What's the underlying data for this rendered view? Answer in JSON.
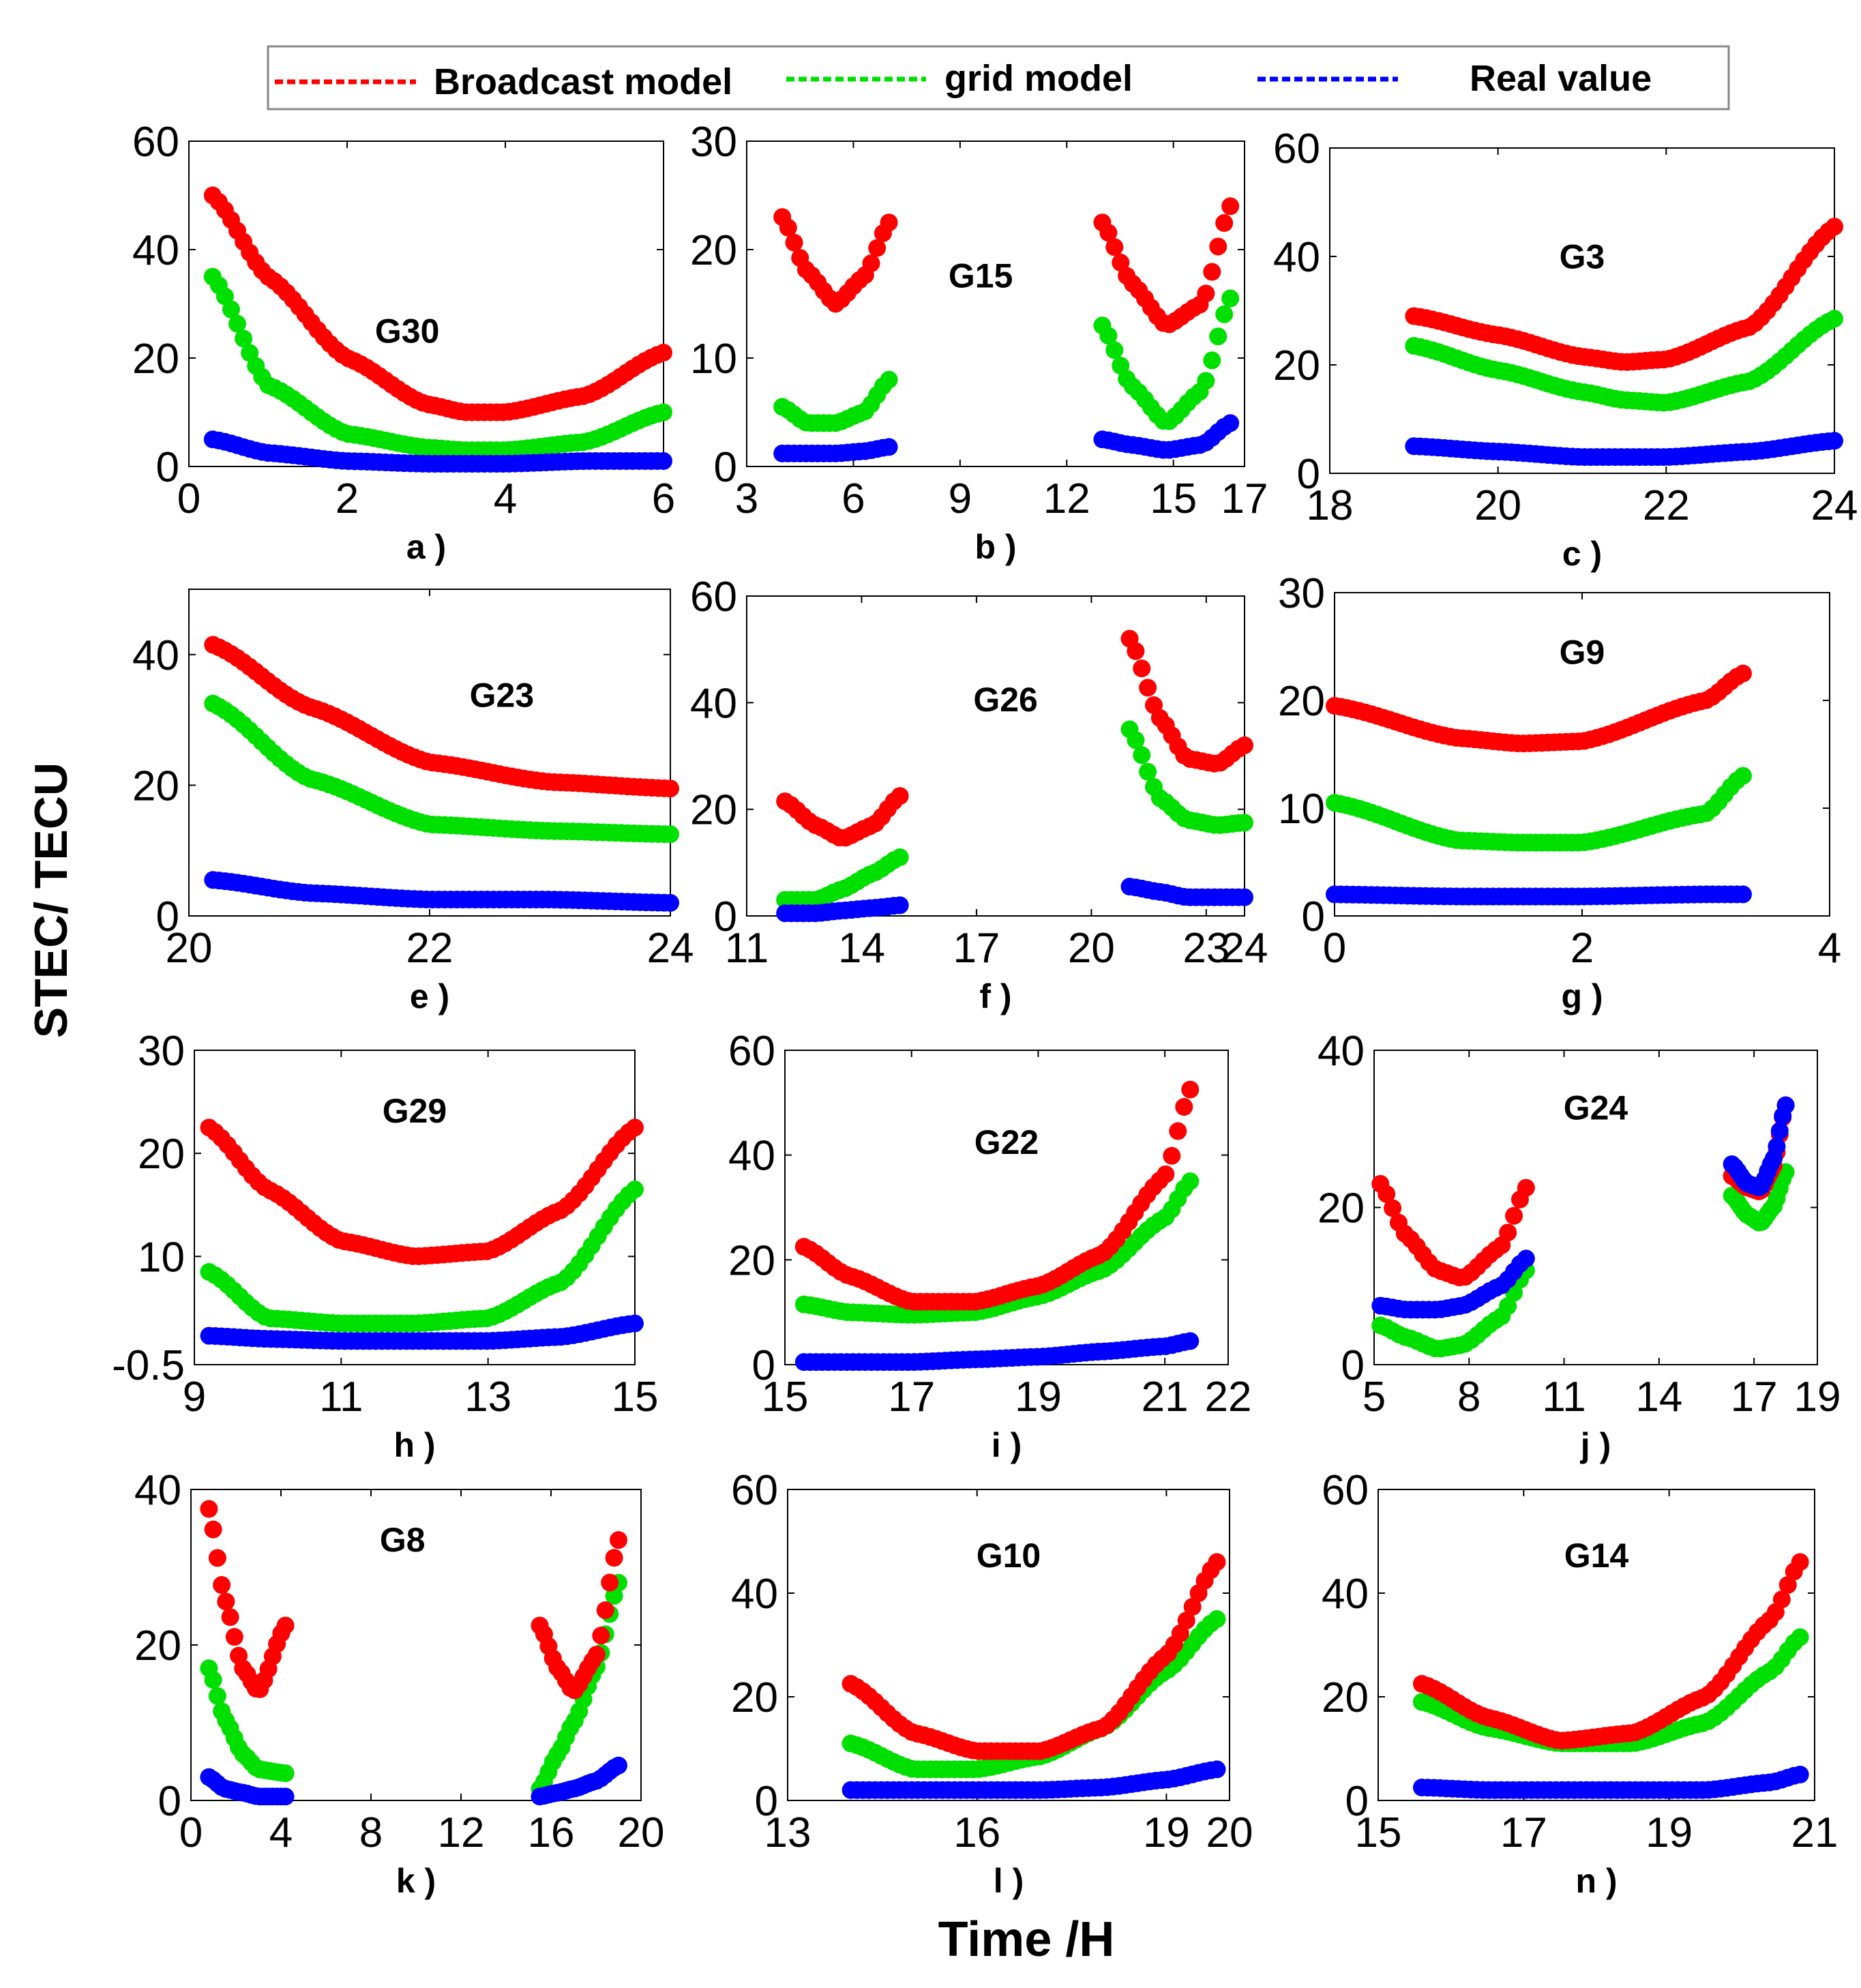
{
  "legend": {
    "broadcast": {
      "label": "Broadcast model",
      "color": "#ff0000"
    },
    "grid": {
      "label": "grid model",
      "color": "#00e000"
    },
    "real": {
      "label": "Real value",
      "color": "#0000ff"
    }
  },
  "ylabel": "STEC/ TECU",
  "xlabel": "Time /H",
  "chart_data": [
    {
      "id": "a",
      "type": "scatter",
      "title": "G30",
      "panel_label": "a )",
      "xlim": [
        0,
        6
      ],
      "ylim": [
        0,
        60
      ],
      "xticks": [
        0,
        2,
        4,
        6
      ],
      "yticks": [
        0,
        20,
        40,
        60
      ],
      "segments": [
        {
          "x": [
            0.3,
            1,
            2,
            3,
            3.5,
            4,
            5,
            6
          ],
          "broadcast": [
            50,
            35,
            20,
            11.5,
            10,
            10,
            13,
            21
          ],
          "grid": [
            35,
            15,
            6,
            3.5,
            3,
            3,
            4.5,
            10
          ],
          "real": [
            5,
            2.5,
            1,
            0.5,
            0.5,
            0.5,
            1,
            1
          ]
        }
      ]
    },
    {
      "id": "b",
      "type": "scatter",
      "title": "G15",
      "panel_label": "b )",
      "xlim": [
        3,
        17
      ],
      "ylim": [
        0,
        30
      ],
      "xticks": [
        3,
        6,
        9,
        12,
        15,
        17
      ],
      "yticks": [
        0,
        10,
        20,
        30
      ],
      "segments": [
        {
          "x": [
            4,
            4.7,
            5.5,
            6.3,
            7
          ],
          "broadcast": [
            23,
            18,
            15,
            17.5,
            22.5
          ],
          "grid": [
            5.5,
            4,
            4,
            5,
            8
          ],
          "real": [
            1.2,
            1.2,
            1.2,
            1.4,
            1.8
          ]
        },
        {
          "x": [
            13,
            13.8,
            14.8,
            15.8,
            16.6
          ],
          "broadcast": [
            22.5,
            17,
            13,
            15,
            24
          ],
          "grid": [
            13,
            7.5,
            4,
            7,
            15.5
          ],
          "real": [
            2.5,
            2,
            1.5,
            2,
            4
          ]
        }
      ]
    },
    {
      "id": "c",
      "type": "scatter",
      "title": "G3",
      "panel_label": "c )",
      "xlim": [
        18,
        24
      ],
      "ylim": [
        0,
        60
      ],
      "xticks": [
        18,
        20,
        22,
        24
      ],
      "yticks": [
        0,
        20,
        40,
        60
      ],
      "segments": [
        {
          "x": [
            19,
            20,
            21,
            21.5,
            22,
            23,
            24
          ],
          "broadcast": [
            29,
            25.5,
            21.5,
            20.5,
            21,
            27,
            45.5
          ],
          "grid": [
            23.5,
            19,
            15,
            13.5,
            13,
            17,
            28.5
          ],
          "real": [
            5,
            4,
            3,
            3,
            3,
            4,
            6
          ]
        }
      ]
    },
    {
      "id": "e",
      "type": "scatter",
      "title": "G23",
      "panel_label": "e )",
      "xlim": [
        20,
        24
      ],
      "ylim": [
        0,
        50
      ],
      "xticks": [
        20,
        22,
        24
      ],
      "yticks": [
        0,
        20,
        40
      ],
      "segments": [
        {
          "x": [
            20.2,
            21,
            22,
            23,
            24
          ],
          "broadcast": [
            41.5,
            32,
            23.5,
            20.5,
            19.5
          ],
          "grid": [
            32.5,
            21,
            14,
            13,
            12.5
          ],
          "real": [
            5.5,
            3.5,
            2.5,
            2.5,
            2
          ]
        }
      ]
    },
    {
      "id": "f",
      "type": "scatter",
      "title": "G26",
      "panel_label": "f )",
      "xlim": [
        11,
        24
      ],
      "ylim": [
        0,
        60
      ],
      "xticks": [
        11,
        14,
        17,
        20,
        23,
        24
      ],
      "yticks": [
        0,
        20,
        40,
        60
      ],
      "segments": [
        {
          "x": [
            12,
            12.8,
            13.5,
            14.3,
            15
          ],
          "broadcast": [
            21.5,
            17,
            14.5,
            17,
            22.5
          ],
          "grid": [
            3,
            3,
            5,
            8,
            11
          ],
          "real": [
            0.5,
            0.5,
            1,
            1.5,
            2
          ]
        },
        {
          "x": [
            21,
            21.8,
            22.5,
            23.3,
            24
          ],
          "broadcast": [
            52,
            37,
            29.5,
            28.5,
            32
          ],
          "grid": [
            35,
            22,
            18,
            17,
            17.5
          ],
          "real": [
            5.5,
            4.5,
            3.5,
            3.5,
            3.5
          ]
        }
      ]
    },
    {
      "id": "g",
      "type": "scatter",
      "title": "G9",
      "panel_label": "g )",
      "xlim": [
        0,
        4
      ],
      "ylim": [
        0,
        30
      ],
      "xticks": [
        0,
        2,
        4
      ],
      "yticks": [
        0,
        10,
        20,
        30
      ],
      "segments": [
        {
          "x": [
            0,
            1,
            1.5,
            2,
            3,
            3.3
          ],
          "broadcast": [
            19.5,
            16.5,
            16,
            16.2,
            20,
            22.5
          ],
          "grid": [
            10.5,
            7,
            6.8,
            6.8,
            9.5,
            13
          ],
          "real": [
            2,
            1.8,
            1.8,
            1.8,
            2,
            2
          ]
        }
      ]
    },
    {
      "id": "h",
      "type": "scatter",
      "title": "G29",
      "panel_label": "h )",
      "xlim": [
        9,
        15
      ],
      "ylim": [
        -0.5,
        30
      ],
      "xticks": [
        9,
        11,
        13,
        15
      ],
      "yticks": [
        -0.5,
        10,
        20,
        30
      ],
      "segments": [
        {
          "x": [
            9.2,
            10,
            11,
            12,
            13,
            14,
            15
          ],
          "broadcast": [
            22.5,
            16.5,
            11.5,
            10,
            10.5,
            14.5,
            22.5
          ],
          "grid": [
            8.5,
            4,
            3.5,
            3.5,
            4,
            7.5,
            16.5
          ],
          "real": [
            2.3,
            2,
            1.8,
            1.8,
            1.8,
            2.2,
            3.5
          ]
        }
      ]
    },
    {
      "id": "i",
      "type": "scatter",
      "title": "G22",
      "panel_label": "i )",
      "xlim": [
        15,
        22
      ],
      "ylim": [
        0,
        60
      ],
      "xticks": [
        15,
        17,
        19,
        21,
        22
      ],
      "yticks": [
        0,
        20,
        40,
        60
      ],
      "segments": [
        {
          "x": [
            15.3,
            16,
            17,
            18,
            19,
            20,
            21,
            21.4
          ],
          "broadcast": [
            22.5,
            17,
            12,
            12,
            15,
            21,
            36,
            52.5
          ],
          "grid": [
            11.5,
            10,
            9.5,
            10,
            13,
            18,
            28,
            35
          ],
          "real": [
            0.5,
            0.5,
            0.5,
            1,
            1.5,
            2.5,
            3.5,
            4.5
          ]
        }
      ]
    },
    {
      "id": "j",
      "type": "scatter",
      "title": "G24",
      "panel_label": "j )",
      "xlim": [
        5,
        19
      ],
      "ylim": [
        0,
        40
      ],
      "xticks": [
        5,
        8,
        11,
        14,
        17,
        19
      ],
      "yticks": [
        0,
        20,
        40
      ],
      "segments": [
        {
          "x": [
            5.2,
            6,
            7,
            7.8,
            9,
            9.8
          ],
          "broadcast": [
            23,
            16.5,
            12,
            11,
            15,
            22.5
          ],
          "grid": [
            5,
            3.5,
            2,
            2.5,
            6,
            12
          ],
          "real": [
            7.5,
            7,
            7,
            7.5,
            10,
            13.5
          ]
        },
        {
          "x": [
            16.3,
            16.8,
            17.2,
            17.6,
            18
          ],
          "broadcast": [
            24,
            22.5,
            22,
            25,
            33
          ],
          "grid": [
            21.5,
            19,
            18,
            20,
            24.5
          ],
          "real": [
            25.5,
            23,
            22.5,
            26,
            33
          ]
        }
      ]
    },
    {
      "id": "k",
      "type": "scatter",
      "title": "G8",
      "panel_label": "k )",
      "xlim": [
        0,
        20
      ],
      "ylim": [
        0,
        40
      ],
      "xticks": [
        0,
        4,
        8,
        12,
        16,
        20
      ],
      "yticks": [
        0,
        20,
        40
      ],
      "segments": [
        {
          "x": [
            0.8,
            1.5,
            2.3,
            3,
            4.2
          ],
          "broadcast": [
            37.5,
            26,
            17,
            14,
            22.5
          ],
          "grid": [
            17,
            10.5,
            6,
            4,
            3.5
          ],
          "real": [
            3,
            1.5,
            1,
            0.5,
            0.5
          ]
        },
        {
          "x": [
            15.5,
            16.3,
            17,
            18,
            19
          ],
          "broadcast": [
            22.5,
            17,
            14,
            18.5,
            33.5
          ],
          "grid": [
            1.5,
            6,
            10,
            17,
            28
          ],
          "real": [
            0.5,
            1,
            1.5,
            2.5,
            4.5
          ]
        }
      ]
    },
    {
      "id": "l",
      "type": "scatter",
      "title": "G10",
      "panel_label": "l )",
      "xlim": [
        13,
        20
      ],
      "ylim": [
        0,
        60
      ],
      "xticks": [
        13,
        16,
        19,
        20
      ],
      "yticks": [
        0,
        20,
        40,
        60
      ],
      "segments": [
        {
          "x": [
            14,
            15,
            16,
            17,
            18,
            19,
            19.8
          ],
          "broadcast": [
            22.5,
            13,
            9.5,
            9.5,
            14,
            28,
            46
          ],
          "grid": [
            11,
            6,
            6,
            8.5,
            14,
            25,
            35
          ],
          "real": [
            2,
            2,
            2,
            2,
            2.5,
            4,
            6
          ]
        }
      ]
    },
    {
      "id": "n",
      "type": "scatter",
      "title": "G14",
      "panel_label": "n )",
      "xlim": [
        15,
        21
      ],
      "ylim": [
        0,
        60
      ],
      "xticks": [
        15,
        17,
        19,
        21
      ],
      "yticks": [
        0,
        20,
        40,
        60
      ],
      "segments": [
        {
          "x": [
            15.6,
            16.5,
            17.5,
            18.5,
            19.5,
            20.4,
            20.8
          ],
          "broadcast": [
            22.5,
            16,
            11.5,
            13,
            20,
            35,
            46
          ],
          "grid": [
            19,
            14,
            11,
            11,
            15,
            25,
            31.5
          ],
          "real": [
            2.5,
            2,
            2,
            2,
            2,
            3.5,
            5
          ]
        }
      ]
    }
  ]
}
